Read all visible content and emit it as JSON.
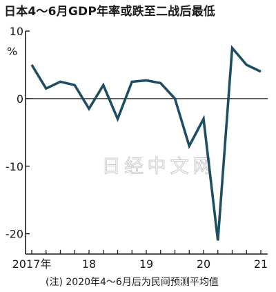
{
  "chart_data": {
    "type": "line",
    "title": "日本4～6月GDP年率或跌至二战后最低",
    "ylabel": "%",
    "ylim": [
      -23,
      10
    ],
    "yticks": [
      10,
      0,
      -10,
      -20
    ],
    "ytick_labels": [
      "10",
      "0",
      "-10",
      "-20"
    ],
    "xticks": [
      "2017年",
      "18",
      "19",
      "20",
      "21"
    ],
    "series": [
      {
        "values": [
          5.0,
          1.5,
          2.5,
          2.0,
          -1.5,
          2.0,
          -3.0,
          2.5,
          2.7,
          2.3,
          0.0,
          -7.0,
          -3.0,
          -21.0,
          7.5,
          5.0,
          4.0
        ]
      }
    ],
    "footnote": "(注) 2020年4～6月后为民间预测平均值",
    "watermark": "日经中文网",
    "colors": {
      "line": "#1f4e63",
      "axis": "#1a1a1a",
      "zero_line": "#1a1a1a"
    }
  }
}
